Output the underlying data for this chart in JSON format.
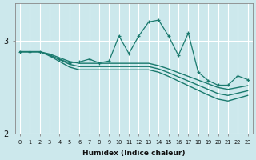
{
  "xlabel": "Humidex (Indice chaleur)",
  "background_color": "#cce8ec",
  "grid_color": "#b8dde2",
  "line_color": "#1a7a6e",
  "xlim_min": -0.5,
  "xlim_max": 23.5,
  "ylim_min": 2.0,
  "ylim_max": 3.4,
  "yticks": [
    2,
    3
  ],
  "xticks": [
    0,
    1,
    2,
    3,
    4,
    5,
    6,
    7,
    8,
    9,
    10,
    11,
    12,
    13,
    14,
    15,
    16,
    17,
    18,
    19,
    20,
    21,
    22,
    23
  ],
  "jagged": [
    2.88,
    2.88,
    2.88,
    2.84,
    2.8,
    2.76,
    2.77,
    2.8,
    2.76,
    2.78,
    3.05,
    2.86,
    3.05,
    3.2,
    3.22,
    3.05,
    2.84,
    3.08,
    2.66,
    2.57,
    2.52,
    2.52,
    2.62,
    2.58
  ],
  "trend1": [
    2.88,
    2.88,
    2.88,
    2.855,
    2.815,
    2.775,
    2.755,
    2.755,
    2.755,
    2.755,
    2.755,
    2.755,
    2.755,
    2.755,
    2.73,
    2.695,
    2.655,
    2.615,
    2.575,
    2.535,
    2.495,
    2.475,
    2.495,
    2.515
  ],
  "trend2": [
    2.88,
    2.88,
    2.88,
    2.845,
    2.795,
    2.745,
    2.72,
    2.72,
    2.72,
    2.72,
    2.72,
    2.72,
    2.72,
    2.72,
    2.695,
    2.655,
    2.61,
    2.565,
    2.52,
    2.475,
    2.43,
    2.41,
    2.435,
    2.46
  ],
  "trend3": [
    2.88,
    2.88,
    2.88,
    2.835,
    2.775,
    2.715,
    2.685,
    2.685,
    2.685,
    2.685,
    2.685,
    2.685,
    2.685,
    2.685,
    2.66,
    2.615,
    2.565,
    2.515,
    2.465,
    2.415,
    2.37,
    2.35,
    2.38,
    2.41
  ]
}
